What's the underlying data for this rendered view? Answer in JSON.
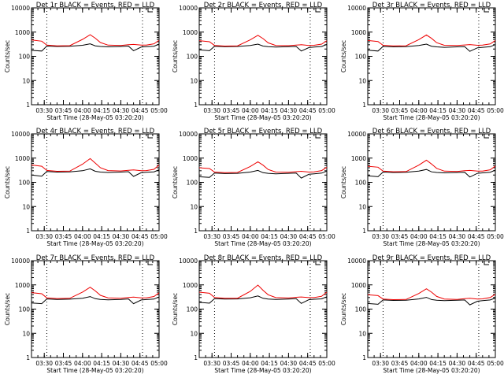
{
  "chart_data": [
    {
      "type": "line",
      "title": "Det 1r BLACK = Events, RED = LLD",
      "ylabel": "Counts/sec",
      "xlabel": "Start Time (28-May-05 03:20:20)",
      "xticks": [
        "03:30",
        "03:45",
        "04:00",
        "04:15",
        "04:30",
        "04:45",
        "05:00"
      ],
      "yticks": [
        "1",
        "10",
        "100",
        "1000",
        "10000"
      ],
      "ylim": [
        1,
        10000
      ],
      "yscale": "log",
      "xlim_minutes": [
        200,
        300
      ],
      "x": [
        200,
        208,
        212,
        220,
        230,
        240,
        246,
        250,
        254,
        260,
        270,
        276,
        280,
        286,
        290,
        296,
        300
      ],
      "series": [
        {
          "name": "Events",
          "color": "#000000",
          "values": [
            175,
            165,
            265,
            255,
            258,
            285,
            330,
            270,
            255,
            245,
            255,
            265,
            170,
            240,
            250,
            260,
            320
          ]
        },
        {
          "name": "LLD",
          "color": "#ee0000",
          "values": [
            470,
            420,
            290,
            270,
            275,
            500,
            780,
            560,
            370,
            290,
            280,
            300,
            310,
            290,
            290,
            330,
            460
          ]
        }
      ]
    },
    {
      "type": "line",
      "title": "Det 2r BLACK = Events, RED = LLD",
      "ylabel": "Counts/sec",
      "xlabel": "Start Time (28-May-05 03:20:20)",
      "xticks": [
        "03:30",
        "03:45",
        "04:00",
        "04:15",
        "04:30",
        "04:45",
        "05:00"
      ],
      "yticks": [
        "1",
        "10",
        "100",
        "1000",
        "10000"
      ],
      "ylim": [
        1,
        10000
      ],
      "yscale": "log",
      "xlim_minutes": [
        200,
        300
      ],
      "x": [
        200,
        208,
        212,
        220,
        230,
        240,
        246,
        250,
        254,
        260,
        270,
        276,
        280,
        286,
        290,
        296,
        300
      ],
      "series": [
        {
          "name": "Events",
          "color": "#000000",
          "values": [
            185,
            170,
            260,
            250,
            255,
            280,
            320,
            265,
            250,
            240,
            250,
            255,
            165,
            230,
            240,
            255,
            310
          ]
        },
        {
          "name": "LLD",
          "color": "#ee0000",
          "values": [
            440,
            400,
            280,
            265,
            270,
            480,
            740,
            540,
            360,
            280,
            275,
            290,
            300,
            280,
            285,
            320,
            440
          ]
        }
      ]
    },
    {
      "type": "line",
      "title": "Det 3r BLACK = Events, RED = LLD",
      "ylabel": "Counts/sec",
      "xlabel": "Start Time (28-May-05 03:20:20)",
      "xticks": [
        "03:30",
        "03:45",
        "04:00",
        "04:15",
        "04:30",
        "04:45",
        "05:00"
      ],
      "yticks": [
        "1",
        "10",
        "100",
        "1000",
        "10000"
      ],
      "ylim": [
        1,
        10000
      ],
      "yscale": "log",
      "xlim_minutes": [
        200,
        300
      ],
      "x": [
        200,
        208,
        212,
        220,
        230,
        240,
        246,
        250,
        254,
        260,
        270,
        276,
        280,
        286,
        290,
        296,
        300
      ],
      "series": [
        {
          "name": "Events",
          "color": "#000000",
          "values": [
            180,
            165,
            255,
            245,
            250,
            280,
            320,
            260,
            245,
            235,
            245,
            250,
            160,
            225,
            235,
            250,
            305
          ]
        },
        {
          "name": "LLD",
          "color": "#ee0000",
          "values": [
            450,
            410,
            285,
            268,
            272,
            490,
            760,
            550,
            365,
            285,
            278,
            295,
            305,
            285,
            290,
            325,
            450
          ]
        }
      ]
    },
    {
      "type": "line",
      "title": "Det 4r BLACK = Events, RED = LLD",
      "ylabel": "Counts/sec",
      "xlabel": "Start Time (28-May-05 03:20:20)",
      "xticks": [
        "03:30",
        "03:45",
        "04:00",
        "04:15",
        "04:30",
        "04:45",
        "05:00"
      ],
      "yticks": [
        "1",
        "10",
        "100",
        "1000",
        "10000"
      ],
      "ylim": [
        1,
        10000
      ],
      "yscale": "log",
      "xlim_minutes": [
        200,
        300
      ],
      "x": [
        200,
        208,
        212,
        220,
        230,
        240,
        246,
        250,
        254,
        260,
        270,
        276,
        280,
        286,
        290,
        296,
        300
      ],
      "series": [
        {
          "name": "Events",
          "color": "#000000",
          "values": [
            200,
            180,
            280,
            265,
            270,
            300,
            360,
            285,
            265,
            255,
            265,
            275,
            175,
            250,
            260,
            270,
            330
          ]
        },
        {
          "name": "LLD",
          "color": "#ee0000",
          "values": [
            520,
            460,
            310,
            285,
            290,
            560,
            950,
            620,
            400,
            305,
            295,
            315,
            325,
            300,
            305,
            345,
            520
          ]
        }
      ]
    },
    {
      "type": "line",
      "title": "Det 5r BLACK = Events, RED = LLD",
      "ylabel": "Counts/sec",
      "xlabel": "Start Time (28-May-05 03:20:20)",
      "xticks": [
        "03:30",
        "03:45",
        "04:00",
        "04:15",
        "04:30",
        "04:45",
        "05:00"
      ],
      "yticks": [
        "1",
        "10",
        "100",
        "1000",
        "10000"
      ],
      "ylim": [
        1,
        10000
      ],
      "yscale": "log",
      "xlim_minutes": [
        200,
        300
      ],
      "x": [
        200,
        208,
        212,
        220,
        230,
        240,
        246,
        250,
        254,
        260,
        270,
        276,
        280,
        286,
        290,
        296,
        300
      ],
      "series": [
        {
          "name": "Events",
          "color": "#000000",
          "values": [
            170,
            160,
            240,
            230,
            235,
            265,
            310,
            250,
            235,
            225,
            235,
            240,
            150,
            215,
            225,
            240,
            290
          ]
        },
        {
          "name": "LLD",
          "color": "#ee0000",
          "values": [
            400,
            370,
            265,
            250,
            255,
            450,
            700,
            510,
            340,
            265,
            258,
            275,
            285,
            265,
            270,
            305,
            420
          ]
        }
      ]
    },
    {
      "type": "line",
      "title": "Det 6r BLACK = Events, RED = LLD",
      "ylabel": "Counts/sec",
      "xlabel": "Start Time (28-May-05 03:20:20)",
      "xticks": [
        "03:30",
        "03:45",
        "04:00",
        "04:15",
        "04:30",
        "04:45",
        "05:00"
      ],
      "yticks": [
        "1",
        "10",
        "100",
        "1000",
        "10000"
      ],
      "ylim": [
        1,
        10000
      ],
      "yscale": "log",
      "xlim_minutes": [
        200,
        300
      ],
      "x": [
        200,
        208,
        212,
        220,
        230,
        240,
        246,
        250,
        254,
        260,
        270,
        276,
        280,
        286,
        290,
        296,
        300
      ],
      "series": [
        {
          "name": "Events",
          "color": "#000000",
          "values": [
            185,
            170,
            265,
            255,
            258,
            290,
            340,
            270,
            255,
            245,
            255,
            260,
            165,
            235,
            245,
            260,
            320
          ]
        },
        {
          "name": "LLD",
          "color": "#ee0000",
          "values": [
            460,
            420,
            290,
            272,
            276,
            510,
            820,
            570,
            375,
            290,
            282,
            300,
            310,
            290,
            292,
            330,
            470
          ]
        }
      ]
    },
    {
      "type": "line",
      "title": "Det 7r BLACK = Events, RED = LLD",
      "ylabel": "Counts/sec",
      "xlabel": "Start Time (28-May-05 03:20:20)",
      "xticks": [
        "03:30",
        "03:45",
        "04:00",
        "04:15",
        "04:30",
        "04:45",
        "05:00"
      ],
      "yticks": [
        "1",
        "10",
        "100",
        "1000",
        "10000"
      ],
      "ylim": [
        1,
        10000
      ],
      "yscale": "log",
      "xlim_minutes": [
        200,
        300
      ],
      "x": [
        200,
        208,
        212,
        220,
        230,
        240,
        246,
        250,
        254,
        260,
        270,
        276,
        280,
        286,
        290,
        296,
        300
      ],
      "series": [
        {
          "name": "Events",
          "color": "#000000",
          "values": [
            180,
            168,
            262,
            252,
            256,
            282,
            328,
            268,
            252,
            242,
            252,
            262,
            168,
            238,
            248,
            258,
            318
          ]
        },
        {
          "name": "LLD",
          "color": "#ee0000",
          "values": [
            480,
            430,
            292,
            272,
            278,
            505,
            800,
            565,
            372,
            292,
            282,
            302,
            312,
            292,
            292,
            332,
            470
          ]
        }
      ]
    },
    {
      "type": "line",
      "title": "Det 8r BLACK = Events, RED = LLD",
      "ylabel": "Counts/sec",
      "xlabel": "Start Time (28-May-05 03:20:20)",
      "xticks": [
        "03:30",
        "03:45",
        "04:00",
        "04:15",
        "04:30",
        "04:45",
        "05:00"
      ],
      "yticks": [
        "1",
        "10",
        "100",
        "1000",
        "10000"
      ],
      "ylim": [
        1,
        10000
      ],
      "yscale": "log",
      "xlim_minutes": [
        200,
        300
      ],
      "x": [
        200,
        208,
        212,
        220,
        230,
        240,
        246,
        250,
        254,
        260,
        270,
        276,
        280,
        286,
        290,
        296,
        300
      ],
      "series": [
        {
          "name": "Events",
          "color": "#000000",
          "values": [
            190,
            175,
            270,
            258,
            262,
            295,
            350,
            278,
            260,
            250,
            260,
            268,
            172,
            245,
            255,
            265,
            325
          ]
        },
        {
          "name": "LLD",
          "color": "#ee0000",
          "values": [
            500,
            450,
            300,
            278,
            282,
            540,
            980,
            600,
            390,
            298,
            288,
            308,
            318,
            298,
            298,
            338,
            500
          ]
        }
      ]
    },
    {
      "type": "line",
      "title": "Det 9r BLACK = Events, RED = LLD",
      "ylabel": "Counts/sec",
      "xlabel": "Start Time (28-May-05 03:20:20)",
      "xticks": [
        "03:30",
        "03:45",
        "04:00",
        "04:15",
        "04:30",
        "04:45",
        "05:00"
      ],
      "yticks": [
        "1",
        "10",
        "100",
        "1000",
        "10000"
      ],
      "ylim": [
        1,
        10000
      ],
      "yscale": "log",
      "xlim_minutes": [
        200,
        300
      ],
      "x": [
        200,
        208,
        212,
        220,
        230,
        240,
        246,
        250,
        254,
        260,
        270,
        276,
        280,
        286,
        290,
        296,
        300
      ],
      "series": [
        {
          "name": "Events",
          "color": "#000000",
          "values": [
            170,
            158,
            238,
            228,
            232,
            262,
            305,
            248,
            232,
            222,
            232,
            238,
            150,
            212,
            222,
            238,
            288
          ]
        },
        {
          "name": "LLD",
          "color": "#ee0000",
          "values": [
            390,
            360,
            260,
            245,
            250,
            440,
            690,
            500,
            335,
            260,
            252,
            270,
            280,
            260,
            265,
            300,
            410
          ]
        }
      ]
    }
  ]
}
